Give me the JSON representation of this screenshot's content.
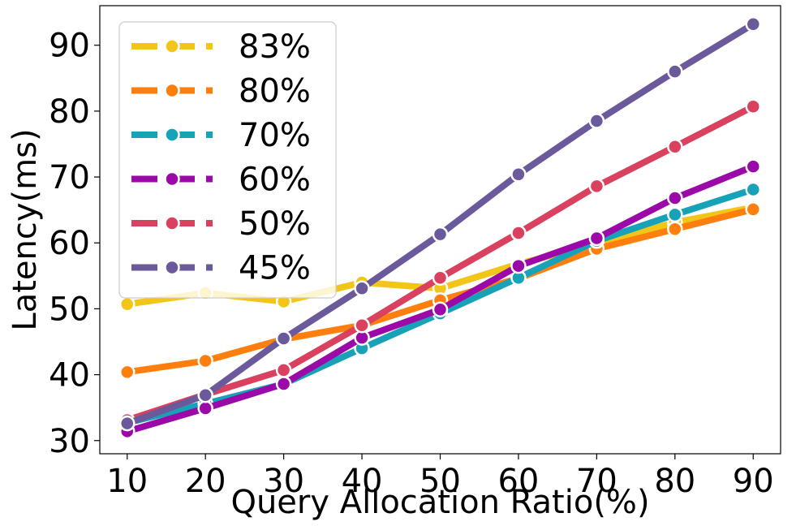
{
  "chart_data": {
    "type": "line",
    "title": "",
    "xlabel": "Query Allocation Ratio(%)",
    "ylabel": "Latency(ms)",
    "x": [
      10,
      20,
      30,
      40,
      50,
      60,
      70,
      80,
      90
    ],
    "xlim": [
      6.5,
      93.5
    ],
    "ylim": [
      28,
      96
    ],
    "xticks": [
      10,
      20,
      30,
      40,
      50,
      60,
      70,
      80,
      90
    ],
    "yticks": [
      30,
      40,
      50,
      60,
      70,
      80,
      90
    ],
    "grid": false,
    "legend_position": "top-left",
    "series": [
      {
        "name": "83%",
        "color": "#f2c618",
        "values": [
          50.7,
          52.4,
          51.1,
          54.0,
          53.1,
          56.8,
          59.9,
          63.1,
          65.4
        ]
      },
      {
        "name": "80%",
        "color": "#ff7f0e",
        "values": [
          40.4,
          42.1,
          45.4,
          47.5,
          51.3,
          54.6,
          59.1,
          62.1,
          65.1
        ]
      },
      {
        "name": "70%",
        "color": "#17a2b8",
        "values": [
          32.7,
          35.6,
          38.6,
          44.0,
          49.3,
          54.7,
          60.3,
          64.3,
          68.1
        ]
      },
      {
        "name": "60%",
        "color": "#9b0aa8",
        "values": [
          31.4,
          34.9,
          38.6,
          45.6,
          49.9,
          56.5,
          60.7,
          66.8,
          71.6
        ]
      },
      {
        "name": "50%",
        "color": "#d9415f",
        "values": [
          33.1,
          37.0,
          40.7,
          47.5,
          54.7,
          61.5,
          68.6,
          74.6,
          80.7
        ]
      },
      {
        "name": "45%",
        "color": "#6a5a9c",
        "values": [
          32.6,
          36.9,
          45.5,
          53.1,
          61.3,
          70.4,
          78.5,
          86.0,
          93.2
        ]
      }
    ]
  }
}
